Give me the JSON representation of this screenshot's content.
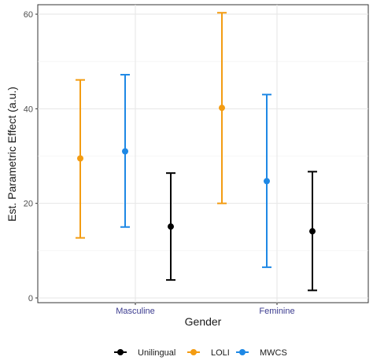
{
  "chart_data": {
    "type": "scatter",
    "subtype": "point-with-error-bars",
    "xlabel": "Gender",
    "ylabel": "Est. Parametric Effect (a.u.)",
    "categories": [
      "Masculine",
      "Feminine"
    ],
    "ylim": [
      -1,
      62
    ],
    "yticks": [
      0,
      20,
      40,
      60
    ],
    "grid": true,
    "legend_position": "bottom",
    "series": [
      {
        "name": "LOLI",
        "color": "#f39c12",
        "values": [
          29.5,
          40.2
        ],
        "lower": [
          12.7,
          20.0
        ],
        "upper": [
          46.1,
          60.3
        ]
      },
      {
        "name": "MWCS",
        "color": "#1e88e5",
        "values": [
          31.0,
          24.7
        ],
        "lower": [
          15.0,
          6.5
        ],
        "upper": [
          47.2,
          43.0
        ]
      },
      {
        "name": "Unilingual",
        "color": "#000000",
        "values": [
          15.1,
          14.1
        ],
        "lower": [
          3.8,
          1.6
        ],
        "upper": [
          26.4,
          26.7
        ]
      }
    ],
    "legend_order": [
      "Unilingual",
      "LOLI",
      "MWCS"
    ]
  }
}
